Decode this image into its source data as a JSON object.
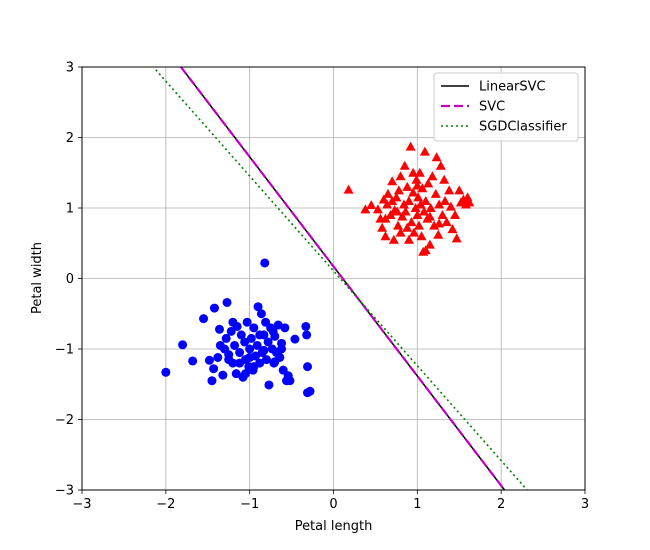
{
  "chart_data": {
    "type": "scatter",
    "title": "",
    "xlabel": "Petal length",
    "ylabel": "Petal width",
    "xlim": [
      -3,
      3
    ],
    "ylim": [
      -3,
      3
    ],
    "xticks": [
      -3,
      -2,
      -1,
      0,
      1,
      2,
      3
    ],
    "yticks": [
      -3,
      -2,
      -1,
      0,
      1,
      2,
      3
    ],
    "xtick_labels": [
      "−3",
      "−2",
      "−1",
      "0",
      "1",
      "2",
      "3"
    ],
    "ytick_labels": [
      "−3",
      "−2",
      "−1",
      "0",
      "1",
      "2",
      "3"
    ],
    "grid": true,
    "legend_position": "top-right",
    "series": [
      {
        "kind": "points",
        "marker": "triangle",
        "color": "#ff0000",
        "points": [
          [
            0.18,
            1.26
          ],
          [
            0.38,
            0.98
          ],
          [
            0.45,
            1.04
          ],
          [
            0.53,
            0.98
          ],
          [
            0.56,
            0.85
          ],
          [
            0.58,
            0.72
          ],
          [
            0.6,
            1.12
          ],
          [
            0.62,
            0.6
          ],
          [
            0.64,
            1.05
          ],
          [
            0.65,
            1.2
          ],
          [
            0.68,
            0.9
          ],
          [
            0.7,
            1.38
          ],
          [
            0.72,
            0.55
          ],
          [
            0.73,
            0.97
          ],
          [
            0.75,
            1.15
          ],
          [
            0.77,
            0.75
          ],
          [
            0.78,
            1.25
          ],
          [
            0.8,
            0.65
          ],
          [
            0.8,
            1.45
          ],
          [
            0.82,
            0.88
          ],
          [
            0.84,
            1.05
          ],
          [
            0.85,
            1.6
          ],
          [
            0.86,
            0.95
          ],
          [
            0.88,
            1.3
          ],
          [
            0.9,
            0.55
          ],
          [
            0.9,
            1.1
          ],
          [
            0.92,
            1.87
          ],
          [
            0.93,
            0.8
          ],
          [
            0.95,
            1.22
          ],
          [
            0.96,
            0.65
          ],
          [
            0.98,
            1.0
          ],
          [
            0.99,
            1.4
          ],
          [
            1.0,
            0.9
          ],
          [
            1.01,
            1.15
          ],
          [
            1.02,
            0.75
          ],
          [
            1.03,
            1.5
          ],
          [
            1.04,
            1.05
          ],
          [
            1.05,
            0.6
          ],
          [
            1.06,
            1.28
          ],
          [
            1.07,
            0.38
          ],
          [
            1.08,
            0.95
          ],
          [
            1.09,
            1.8
          ],
          [
            1.1,
            1.1
          ],
          [
            1.1,
            0.4
          ],
          [
            1.12,
            0.85
          ],
          [
            1.13,
            1.35
          ],
          [
            1.15,
            0.48
          ],
          [
            1.16,
            1.0
          ],
          [
            1.18,
            1.45
          ],
          [
            1.2,
            0.75
          ],
          [
            1.22,
            1.2
          ],
          [
            1.23,
            1.72
          ],
          [
            1.25,
            0.62
          ],
          [
            1.26,
            1.05
          ],
          [
            1.28,
            1.6
          ],
          [
            1.3,
            0.9
          ],
          [
            1.32,
            1.4
          ],
          [
            1.33,
            1.1
          ],
          [
            1.35,
            0.8
          ],
          [
            1.38,
            1.25
          ],
          [
            1.4,
            1.02
          ],
          [
            1.42,
            0.7
          ],
          [
            1.45,
            0.9
          ],
          [
            1.47,
            0.57
          ],
          [
            1.5,
            1.25
          ],
          [
            1.52,
            1.08
          ],
          [
            1.55,
            1.12
          ],
          [
            1.58,
            1.05
          ],
          [
            1.6,
            1.15
          ],
          [
            1.62,
            1.08
          ],
          [
            0.95,
            1.5
          ],
          [
            0.7,
            1.1
          ],
          [
            1.0,
            1.32
          ],
          [
            0.62,
            0.85
          ],
          [
            1.15,
            0.88
          ],
          [
            0.88,
            0.72
          ],
          [
            1.26,
            0.78
          ],
          [
            0.76,
            0.95
          ]
        ]
      },
      {
        "kind": "points",
        "marker": "circle",
        "color": "#0000ff",
        "points": [
          [
            -2.0,
            -1.33
          ],
          [
            -1.8,
            -0.94
          ],
          [
            -1.68,
            -1.17
          ],
          [
            -1.55,
            -0.57
          ],
          [
            -1.48,
            -1.16
          ],
          [
            -1.45,
            -1.45
          ],
          [
            -1.43,
            -1.28
          ],
          [
            -1.42,
            -0.42
          ],
          [
            -1.38,
            -1.12
          ],
          [
            -1.36,
            -0.72
          ],
          [
            -1.32,
            -1.37
          ],
          [
            -1.3,
            -1.0
          ],
          [
            -1.28,
            -0.85
          ],
          [
            -1.27,
            -0.34
          ],
          [
            -1.25,
            -1.15
          ],
          [
            -1.22,
            -0.75
          ],
          [
            -1.2,
            -1.2
          ],
          [
            -1.18,
            -0.95
          ],
          [
            -1.16,
            -1.35
          ],
          [
            -1.15,
            -0.68
          ],
          [
            -1.12,
            -1.05
          ],
          [
            -1.1,
            -0.8
          ],
          [
            -1.08,
            -1.4
          ],
          [
            -1.06,
            -0.9
          ],
          [
            -1.05,
            -1.15
          ],
          [
            -1.03,
            -0.62
          ],
          [
            -1.01,
            -1.25
          ],
          [
            -1.0,
            -1.0
          ],
          [
            -0.98,
            -0.85
          ],
          [
            -0.96,
            -1.3
          ],
          [
            -0.95,
            -0.7
          ],
          [
            -0.93,
            -1.1
          ],
          [
            -0.91,
            -0.95
          ],
          [
            -0.9,
            -0.4
          ],
          [
            -0.88,
            -1.2
          ],
          [
            -0.86,
            -0.5
          ],
          [
            -0.85,
            -1.05
          ],
          [
            -0.83,
            -0.8
          ],
          [
            -0.82,
            0.22
          ],
          [
            -0.81,
            -0.62
          ],
          [
            -0.8,
            -1.15
          ],
          [
            -0.78,
            -0.9
          ],
          [
            -0.77,
            -1.51
          ],
          [
            -0.75,
            -0.7
          ],
          [
            -0.73,
            -1.0
          ],
          [
            -0.71,
            -1.2
          ],
          [
            -0.7,
            -0.82
          ],
          [
            -0.68,
            -1.05
          ],
          [
            -0.66,
            -0.66
          ],
          [
            -0.64,
            -1.12
          ],
          [
            -0.62,
            -0.92
          ],
          [
            -0.6,
            -1.3
          ],
          [
            -0.58,
            -0.7
          ],
          [
            -0.56,
            -1.45
          ],
          [
            -0.54,
            -1.38
          ],
          [
            -0.52,
            -1.45
          ],
          [
            -0.46,
            -0.86
          ],
          [
            -0.33,
            -0.68
          ],
          [
            -0.32,
            -0.8
          ],
          [
            -0.31,
            -1.25
          ],
          [
            -0.31,
            -1.62
          ],
          [
            -0.28,
            -1.6
          ],
          [
            -1.05,
            -1.35
          ],
          [
            -1.35,
            -0.95
          ],
          [
            -0.95,
            -1.25
          ],
          [
            -1.2,
            -0.62
          ],
          [
            -0.72,
            -0.75
          ],
          [
            -1.12,
            -1.2
          ],
          [
            -0.88,
            -0.8
          ],
          [
            -1.0,
            -1.12
          ],
          [
            -0.7,
            -1.18
          ],
          [
            -1.25,
            -1.08
          ],
          [
            -0.83,
            -1.02
          ],
          [
            -0.62,
            -1.0
          ]
        ]
      },
      {
        "name": "LinearSVC",
        "kind": "line",
        "color": "#000000",
        "style": "solid",
        "x": [
          -1.82,
          2.04
        ],
        "y": [
          3.0,
          -3.0
        ]
      },
      {
        "name": "SVC",
        "kind": "line",
        "color": "#bf00bf",
        "style": "dashed",
        "x": [
          -1.82,
          2.04
        ],
        "y": [
          3.0,
          -3.0
        ]
      },
      {
        "name": "SGDClassifier",
        "kind": "line",
        "color": "#008000",
        "style": "dotted",
        "x": [
          -2.12,
          2.31
        ],
        "y": [
          2.96,
          -3.0
        ]
      }
    ]
  }
}
